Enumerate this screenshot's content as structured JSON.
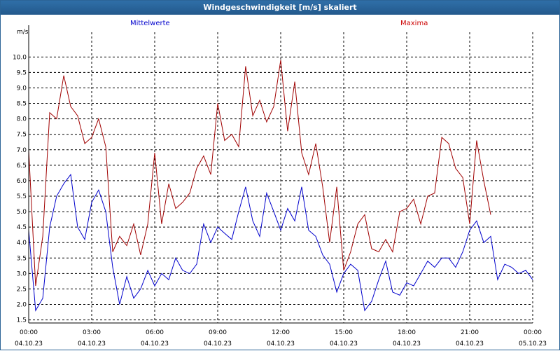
{
  "window": {
    "title": "Windgeschwindigkeit [m/s] skaliert"
  },
  "chart_data": {
    "type": "line",
    "title": "Windgeschwindigkeit [m/s] skaliert",
    "ylabel": "m/s",
    "ylim": [
      1.4,
      10.8
    ],
    "xlim": [
      0,
      24
    ],
    "grid": true,
    "legend_placement": "top",
    "y_ticks": [
      "1.5",
      "2.0",
      "2.5",
      "3.0",
      "3.5",
      "4.0",
      "4.5",
      "5.0",
      "5.5",
      "6.0",
      "6.5",
      "7.0",
      "7.5",
      "8.0",
      "8.5",
      "9.0",
      "9.5",
      "10.0"
    ],
    "x_ticks": [
      {
        "time": "00:00",
        "date": "04.10.23"
      },
      {
        "time": "03:00",
        "date": "04.10.23"
      },
      {
        "time": "06:00",
        "date": "04.10.23"
      },
      {
        "time": "09:00",
        "date": "04.10.23"
      },
      {
        "time": "12:00",
        "date": "04.10.23"
      },
      {
        "time": "15:00",
        "date": "04.10.23"
      },
      {
        "time": "18:00",
        "date": "04.10.23"
      },
      {
        "time": "21:00",
        "date": "04.10.23"
      },
      {
        "time": "00:00",
        "date": "05.10.23"
      }
    ],
    "x": [
      0,
      0.33,
      0.67,
      1,
      1.33,
      1.67,
      2,
      2.33,
      2.67,
      3,
      3.33,
      3.67,
      4,
      4.33,
      4.67,
      5,
      5.33,
      5.67,
      6,
      6.33,
      6.67,
      7,
      7.33,
      7.67,
      8,
      8.33,
      8.67,
      9,
      9.33,
      9.67,
      10,
      10.33,
      10.67,
      11,
      11.33,
      11.67,
      12,
      12.33,
      12.67,
      13,
      13.33,
      13.67,
      14,
      14.33,
      14.67,
      15,
      15.33,
      15.67,
      16,
      16.33,
      16.67,
      17,
      17.33,
      17.67,
      18,
      18.33,
      18.67,
      19,
      19.33,
      19.67,
      20,
      20.33,
      20.67,
      21,
      21.33,
      21.67,
      22,
      22.33,
      22.67,
      23,
      23.33,
      23.67,
      24
    ],
    "series": [
      {
        "name": "Mittelwerte",
        "color": "#0000cc",
        "values": [
          4.4,
          1.8,
          2.2,
          4.5,
          5.5,
          5.9,
          6.2,
          4.5,
          4.1,
          5.3,
          5.7,
          5.0,
          3.2,
          2.0,
          2.9,
          2.2,
          2.5,
          3.1,
          2.6,
          3.0,
          2.8,
          3.5,
          3.1,
          3.0,
          3.3,
          4.6,
          4.0,
          4.5,
          4.3,
          4.1,
          5.0,
          5.8,
          4.7,
          4.2,
          5.6,
          5.0,
          4.4,
          5.1,
          4.7,
          5.8,
          4.4,
          4.2,
          3.6,
          3.3,
          2.4,
          3.0,
          3.3,
          3.1,
          1.8,
          2.1,
          2.8,
          3.4,
          2.4,
          2.3,
          2.7,
          2.6,
          3.0,
          3.4,
          3.2,
          3.5,
          3.5,
          3.2,
          3.7,
          4.4,
          4.7,
          4.0,
          4.2,
          2.8,
          3.3,
          3.2,
          3.0,
          3.1,
          2.8
        ]
      },
      {
        "name": "Maxima",
        "color": "#a00000",
        "values": [
          7.0,
          2.6,
          4.2,
          8.2,
          8.0,
          9.4,
          8.4,
          8.1,
          7.2,
          7.4,
          8.0,
          7.1,
          3.7,
          4.2,
          3.9,
          4.6,
          3.6,
          4.6,
          6.9,
          4.6,
          5.9,
          5.1,
          5.3,
          5.6,
          6.4,
          6.8,
          6.2,
          8.5,
          7.3,
          7.5,
          7.1,
          9.7,
          8.1,
          8.6,
          7.9,
          8.4,
          9.9,
          7.6,
          9.2,
          6.9,
          6.2,
          7.2,
          5.8,
          4.0,
          5.8,
          3.1,
          3.7,
          4.6,
          4.9,
          3.8,
          3.7,
          4.1,
          3.7,
          5.0,
          5.1,
          5.4,
          4.6,
          5.5,
          5.6,
          7.4,
          7.2,
          6.4,
          6.1,
          4.6,
          7.3,
          6.0,
          4.9,
          null,
          null,
          null,
          null,
          null,
          null
        ]
      }
    ]
  }
}
